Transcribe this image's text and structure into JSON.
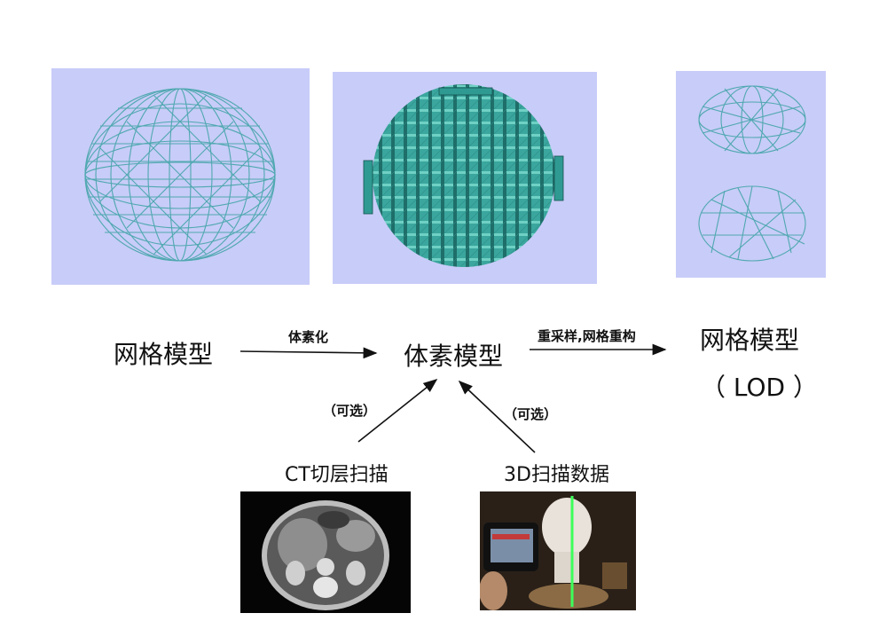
{
  "nodes": {
    "mesh_model": "网格模型",
    "voxel_model": "体素模型",
    "mesh_lod_title": "网格模型",
    "mesh_lod_sub": "（ LOD ）",
    "ct_scan": "CT切层扫描",
    "scan_3d": "3D扫描数据"
  },
  "edges": {
    "voxelize": "体素化",
    "resample": "重采样,网格重构",
    "optional_left": "（可选）",
    "optional_right": "（可选）"
  },
  "colors": {
    "panel_bg": "#c8ccf8",
    "wire": "#4fa8b0",
    "voxel": "#3ea8a0",
    "arrow": "#111111"
  },
  "icons": {
    "wireframe": "wireframe-sphere-icon",
    "voxel": "voxel-sphere-icon",
    "lod": "lod-mesh-icon",
    "ct": "ct-slice-image",
    "scan": "3d-scan-photo"
  }
}
